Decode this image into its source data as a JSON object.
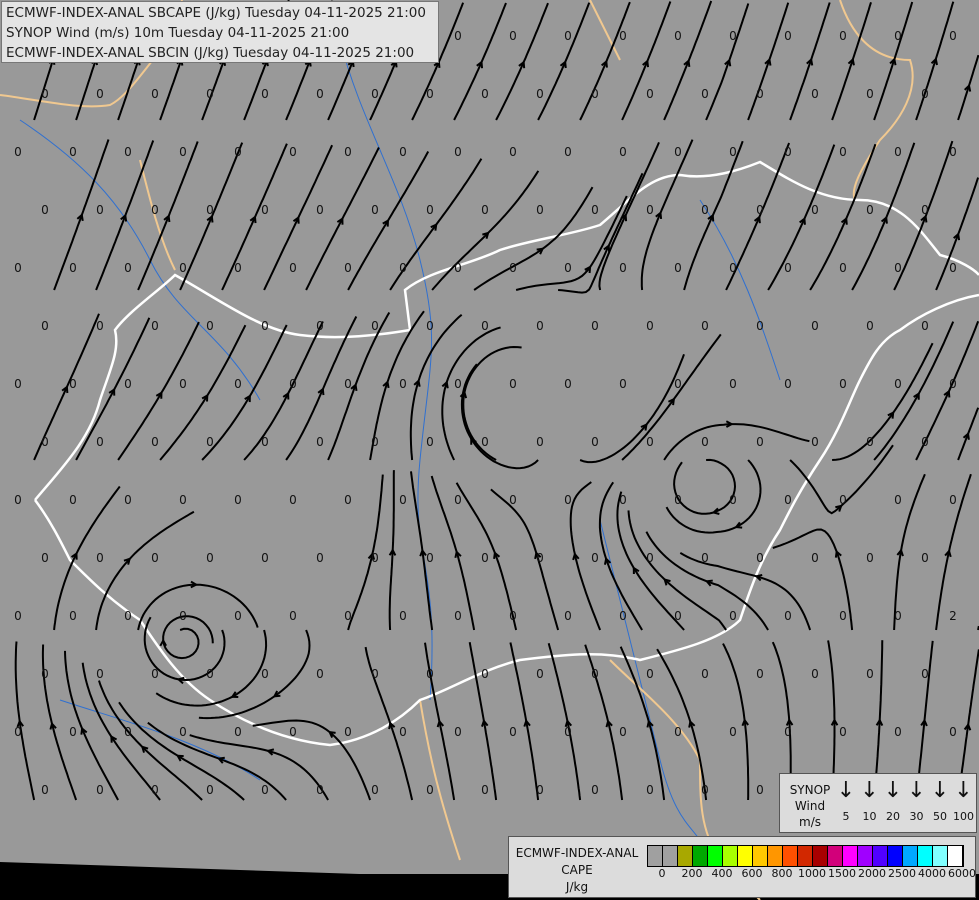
{
  "title_lines": [
    "ECMWF-INDEX-ANAL SBCAPE (J/kg) Tuesday 04-11-2025 21:00",
    "SYNOP Wind (m/s) 10m Tuesday 04-11-2025 21:00",
    "ECMWF-INDEX-ANAL SBCIN (J/kg) Tuesday 04-11-2025 21:00"
  ],
  "wind_legend": {
    "title": [
      "SYNOP",
      "Wind",
      "m/s"
    ],
    "arrow_icon": "arrow-down-icon",
    "speeds": [
      "5",
      "10",
      "20",
      "30",
      "50",
      "100"
    ]
  },
  "cape_legend": {
    "title": [
      "ECMWF-INDEX-ANAL",
      "CAPE",
      "J/kg"
    ],
    "colors": [
      "#a0a0a0",
      "#a0a0a0",
      "#a8a800",
      "#00a800",
      "#00ff00",
      "#a8ff00",
      "#ffff00",
      "#ffc800",
      "#ff9600",
      "#ff5000",
      "#d22800",
      "#a80000",
      "#d2007a",
      "#ff00ff",
      "#a000ff",
      "#5000ff",
      "#0000ff",
      "#00a8ff",
      "#00ffff",
      "#80ffff",
      "#ffffff"
    ],
    "tick_labels": [
      "0",
      "200",
      "400",
      "600",
      "800",
      "1000",
      "1500",
      "2000",
      "2500",
      "4000",
      "6000"
    ]
  },
  "map": {
    "background": "#999999",
    "border_national": "#ffffff",
    "border_other": "#f0c890",
    "rivers": "#3070d0",
    "streamline_color": "#000000",
    "cin_value_default": "0",
    "cin_value_exception": "2"
  }
}
